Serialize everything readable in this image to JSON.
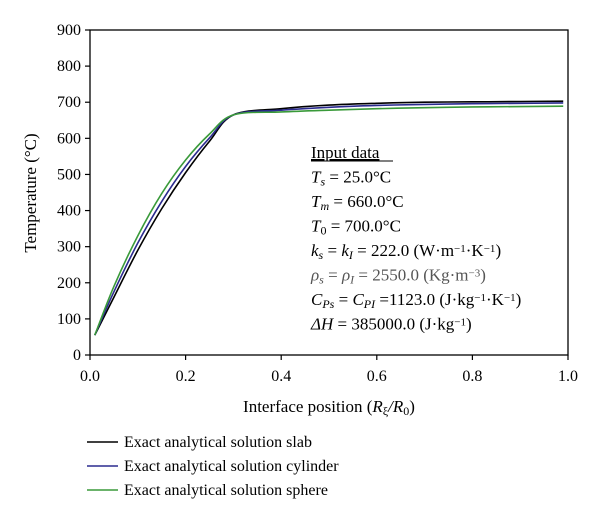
{
  "chart_data": {
    "type": "line",
    "xlabel": {
      "prefix": "Interface position (",
      "var1": "R",
      "sub1": "ξ",
      "slash": "/",
      "var2": "R",
      "sub2": "0",
      "suffix": ")"
    },
    "ylabel": "Temperature (°C)",
    "xlim": [
      0.0,
      1.0
    ],
    "ylim": [
      0,
      900
    ],
    "x_ticks": [
      "0.0",
      "0.2",
      "0.4",
      "0.6",
      "0.8",
      "1.0"
    ],
    "y_ticks": [
      "0",
      "100",
      "200",
      "300",
      "400",
      "500",
      "600",
      "700",
      "800",
      "900"
    ],
    "grid": false,
    "legend_position": "bottom-left",
    "series": [
      {
        "name": "Exact analytical solution slab",
        "color": "#000000",
        "points": [
          [
            0.01,
            55
          ],
          [
            0.05,
            160
          ],
          [
            0.1,
            290
          ],
          [
            0.15,
            405
          ],
          [
            0.2,
            505
          ],
          [
            0.25,
            592
          ],
          [
            0.3,
            665
          ],
          [
            0.4,
            682
          ],
          [
            0.5,
            692
          ],
          [
            0.6,
            697
          ],
          [
            0.7,
            700
          ],
          [
            0.8,
            701
          ],
          [
            0.9,
            702
          ],
          [
            0.99,
            703
          ]
        ]
      },
      {
        "name": "Exact analytical solution cylinder",
        "color": "#2b2b8f",
        "points": [
          [
            0.01,
            55
          ],
          [
            0.05,
            175
          ],
          [
            0.1,
            310
          ],
          [
            0.15,
            425
          ],
          [
            0.2,
            522
          ],
          [
            0.25,
            601
          ],
          [
            0.3,
            665
          ],
          [
            0.4,
            678
          ],
          [
            0.5,
            686
          ],
          [
            0.6,
            691
          ],
          [
            0.7,
            694
          ],
          [
            0.8,
            696
          ],
          [
            0.9,
            697
          ],
          [
            0.99,
            698
          ]
        ]
      },
      {
        "name": "Exact analytical solution sphere",
        "color": "#3a9a3a",
        "points": [
          [
            0.01,
            55
          ],
          [
            0.05,
            190
          ],
          [
            0.1,
            330
          ],
          [
            0.15,
            447
          ],
          [
            0.2,
            540
          ],
          [
            0.25,
            612
          ],
          [
            0.3,
            665
          ],
          [
            0.4,
            673
          ],
          [
            0.5,
            678
          ],
          [
            0.6,
            682
          ],
          [
            0.7,
            685
          ],
          [
            0.8,
            687
          ],
          [
            0.9,
            688
          ],
          [
            0.99,
            689
          ]
        ]
      }
    ],
    "annotation": {
      "title": "Input data",
      "lines": [
        {
          "color": "#000000",
          "parts": [
            {
              "t": "T",
              "i": true
            },
            {
              "t": "s",
              "sub": true,
              "i": true
            },
            {
              "t": " = 25.0°C"
            }
          ]
        },
        {
          "color": "#000000",
          "parts": [
            {
              "t": "T",
              "i": true
            },
            {
              "t": "m",
              "sub": true,
              "i": true
            },
            {
              "t": " = 660.0°C"
            }
          ]
        },
        {
          "color": "#000000",
          "parts": [
            {
              "t": "T",
              "i": true
            },
            {
              "t": "0",
              "sub": true
            },
            {
              "t": " = 700.0°C"
            }
          ]
        },
        {
          "color": "#000000",
          "parts": [
            {
              "t": "k",
              "i": true
            },
            {
              "t": "s",
              "sub": true,
              "i": true
            },
            {
              "t": " = "
            },
            {
              "t": "k",
              "i": true
            },
            {
              "t": "I",
              "sub": true,
              "i": true
            },
            {
              "t": " = 222.0 (W·m"
            },
            {
              "t": "−1",
              "sup": true
            },
            {
              "t": "·K"
            },
            {
              "t": "−1",
              "sup": true
            },
            {
              "t": ")"
            }
          ]
        },
        {
          "color": "#555555",
          "parts": [
            {
              "t": "ρ",
              "i": true
            },
            {
              "t": "s",
              "sub": true,
              "i": true
            },
            {
              "t": " = "
            },
            {
              "t": "ρ",
              "i": true
            },
            {
              "t": "I",
              "sub": true,
              "i": true
            },
            {
              "t": " = 2550.0 (Kg·m"
            },
            {
              "t": "−3",
              "sup": true
            },
            {
              "t": ")"
            }
          ]
        },
        {
          "color": "#000000",
          "parts": [
            {
              "t": "C",
              "i": true
            },
            {
              "t": "Ps",
              "sub": true,
              "i": true
            },
            {
              "t": " = "
            },
            {
              "t": "C",
              "i": true
            },
            {
              "t": "PI",
              "sub": true,
              "i": true
            },
            {
              "t": " =1123.0 (J·kg"
            },
            {
              "t": "−1",
              "sup": true
            },
            {
              "t": "·K"
            },
            {
              "t": "−1",
              "sup": true
            },
            {
              "t": ")"
            }
          ]
        },
        {
          "color": "#000000",
          "parts": [
            {
              "t": "ΔH",
              "i": true
            },
            {
              "t": " = 385000.0 (J·kg"
            },
            {
              "t": "−1",
              "sup": true
            },
            {
              "t": ")"
            }
          ]
        }
      ]
    }
  }
}
